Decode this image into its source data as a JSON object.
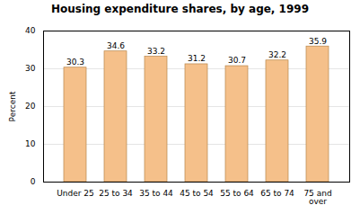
{
  "chart_data": {
    "type": "bar",
    "title": "Housing expenditure shares, by age, 1999",
    "categories": [
      "Under 25",
      "25 to 34",
      "35 to 44",
      "45 to 54",
      "55 to 64",
      "65 to 74",
      "75 and\nover"
    ],
    "values": [
      30.3,
      34.6,
      33.2,
      31.2,
      30.7,
      32.2,
      35.9
    ],
    "color": "#F5C08A",
    "ylabel": "Percent",
    "ylim": [
      0,
      40
    ],
    "yticks": [
      0,
      10,
      20,
      30,
      40
    ],
    "grid": true,
    "data_labels": true
  }
}
